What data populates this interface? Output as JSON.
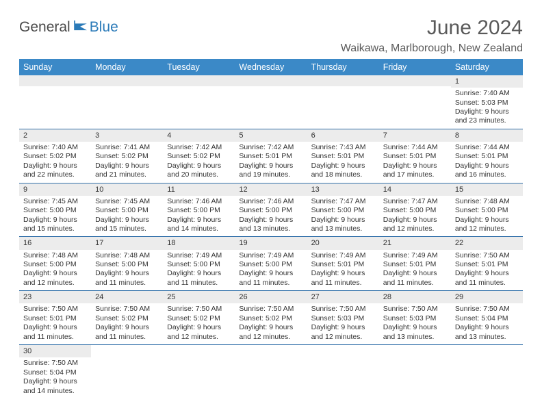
{
  "brand": {
    "text1": "General",
    "text2": "Blue"
  },
  "title": "June 2024",
  "location": "Waikawa, Marlborough, New Zealand",
  "columns": [
    "Sunday",
    "Monday",
    "Tuesday",
    "Wednesday",
    "Thursday",
    "Friday",
    "Saturday"
  ],
  "colors": {
    "header_bg": "#3b89c7",
    "header_text": "#ffffff",
    "row_divider": "#2f6ea8",
    "dayhead_bg": "#ececec",
    "text": "#333333",
    "brand_blue": "#2a7ab8"
  },
  "weeks": [
    [
      {
        "n": "",
        "sr": "",
        "ss": "",
        "dl": ""
      },
      {
        "n": "",
        "sr": "",
        "ss": "",
        "dl": ""
      },
      {
        "n": "",
        "sr": "",
        "ss": "",
        "dl": ""
      },
      {
        "n": "",
        "sr": "",
        "ss": "",
        "dl": ""
      },
      {
        "n": "",
        "sr": "",
        "ss": "",
        "dl": ""
      },
      {
        "n": "",
        "sr": "",
        "ss": "",
        "dl": ""
      },
      {
        "n": "1",
        "sr": "Sunrise: 7:40 AM",
        "ss": "Sunset: 5:03 PM",
        "dl": "Daylight: 9 hours and 23 minutes."
      }
    ],
    [
      {
        "n": "2",
        "sr": "Sunrise: 7:40 AM",
        "ss": "Sunset: 5:02 PM",
        "dl": "Daylight: 9 hours and 22 minutes."
      },
      {
        "n": "3",
        "sr": "Sunrise: 7:41 AM",
        "ss": "Sunset: 5:02 PM",
        "dl": "Daylight: 9 hours and 21 minutes."
      },
      {
        "n": "4",
        "sr": "Sunrise: 7:42 AM",
        "ss": "Sunset: 5:02 PM",
        "dl": "Daylight: 9 hours and 20 minutes."
      },
      {
        "n": "5",
        "sr": "Sunrise: 7:42 AM",
        "ss": "Sunset: 5:01 PM",
        "dl": "Daylight: 9 hours and 19 minutes."
      },
      {
        "n": "6",
        "sr": "Sunrise: 7:43 AM",
        "ss": "Sunset: 5:01 PM",
        "dl": "Daylight: 9 hours and 18 minutes."
      },
      {
        "n": "7",
        "sr": "Sunrise: 7:44 AM",
        "ss": "Sunset: 5:01 PM",
        "dl": "Daylight: 9 hours and 17 minutes."
      },
      {
        "n": "8",
        "sr": "Sunrise: 7:44 AM",
        "ss": "Sunset: 5:01 PM",
        "dl": "Daylight: 9 hours and 16 minutes."
      }
    ],
    [
      {
        "n": "9",
        "sr": "Sunrise: 7:45 AM",
        "ss": "Sunset: 5:00 PM",
        "dl": "Daylight: 9 hours and 15 minutes."
      },
      {
        "n": "10",
        "sr": "Sunrise: 7:45 AM",
        "ss": "Sunset: 5:00 PM",
        "dl": "Daylight: 9 hours and 15 minutes."
      },
      {
        "n": "11",
        "sr": "Sunrise: 7:46 AM",
        "ss": "Sunset: 5:00 PM",
        "dl": "Daylight: 9 hours and 14 minutes."
      },
      {
        "n": "12",
        "sr": "Sunrise: 7:46 AM",
        "ss": "Sunset: 5:00 PM",
        "dl": "Daylight: 9 hours and 13 minutes."
      },
      {
        "n": "13",
        "sr": "Sunrise: 7:47 AM",
        "ss": "Sunset: 5:00 PM",
        "dl": "Daylight: 9 hours and 13 minutes."
      },
      {
        "n": "14",
        "sr": "Sunrise: 7:47 AM",
        "ss": "Sunset: 5:00 PM",
        "dl": "Daylight: 9 hours and 12 minutes."
      },
      {
        "n": "15",
        "sr": "Sunrise: 7:48 AM",
        "ss": "Sunset: 5:00 PM",
        "dl": "Daylight: 9 hours and 12 minutes."
      }
    ],
    [
      {
        "n": "16",
        "sr": "Sunrise: 7:48 AM",
        "ss": "Sunset: 5:00 PM",
        "dl": "Daylight: 9 hours and 12 minutes."
      },
      {
        "n": "17",
        "sr": "Sunrise: 7:48 AM",
        "ss": "Sunset: 5:00 PM",
        "dl": "Daylight: 9 hours and 11 minutes."
      },
      {
        "n": "18",
        "sr": "Sunrise: 7:49 AM",
        "ss": "Sunset: 5:00 PM",
        "dl": "Daylight: 9 hours and 11 minutes."
      },
      {
        "n": "19",
        "sr": "Sunrise: 7:49 AM",
        "ss": "Sunset: 5:00 PM",
        "dl": "Daylight: 9 hours and 11 minutes."
      },
      {
        "n": "20",
        "sr": "Sunrise: 7:49 AM",
        "ss": "Sunset: 5:01 PM",
        "dl": "Daylight: 9 hours and 11 minutes."
      },
      {
        "n": "21",
        "sr": "Sunrise: 7:49 AM",
        "ss": "Sunset: 5:01 PM",
        "dl": "Daylight: 9 hours and 11 minutes."
      },
      {
        "n": "22",
        "sr": "Sunrise: 7:50 AM",
        "ss": "Sunset: 5:01 PM",
        "dl": "Daylight: 9 hours and 11 minutes."
      }
    ],
    [
      {
        "n": "23",
        "sr": "Sunrise: 7:50 AM",
        "ss": "Sunset: 5:01 PM",
        "dl": "Daylight: 9 hours and 11 minutes."
      },
      {
        "n": "24",
        "sr": "Sunrise: 7:50 AM",
        "ss": "Sunset: 5:02 PM",
        "dl": "Daylight: 9 hours and 11 minutes."
      },
      {
        "n": "25",
        "sr": "Sunrise: 7:50 AM",
        "ss": "Sunset: 5:02 PM",
        "dl": "Daylight: 9 hours and 12 minutes."
      },
      {
        "n": "26",
        "sr": "Sunrise: 7:50 AM",
        "ss": "Sunset: 5:02 PM",
        "dl": "Daylight: 9 hours and 12 minutes."
      },
      {
        "n": "27",
        "sr": "Sunrise: 7:50 AM",
        "ss": "Sunset: 5:03 PM",
        "dl": "Daylight: 9 hours and 12 minutes."
      },
      {
        "n": "28",
        "sr": "Sunrise: 7:50 AM",
        "ss": "Sunset: 5:03 PM",
        "dl": "Daylight: 9 hours and 13 minutes."
      },
      {
        "n": "29",
        "sr": "Sunrise: 7:50 AM",
        "ss": "Sunset: 5:04 PM",
        "dl": "Daylight: 9 hours and 13 minutes."
      }
    ],
    [
      {
        "n": "30",
        "sr": "Sunrise: 7:50 AM",
        "ss": "Sunset: 5:04 PM",
        "dl": "Daylight: 9 hours and 14 minutes."
      },
      {
        "n": "",
        "sr": "",
        "ss": "",
        "dl": ""
      },
      {
        "n": "",
        "sr": "",
        "ss": "",
        "dl": ""
      },
      {
        "n": "",
        "sr": "",
        "ss": "",
        "dl": ""
      },
      {
        "n": "",
        "sr": "",
        "ss": "",
        "dl": ""
      },
      {
        "n": "",
        "sr": "",
        "ss": "",
        "dl": ""
      },
      {
        "n": "",
        "sr": "",
        "ss": "",
        "dl": ""
      }
    ]
  ]
}
